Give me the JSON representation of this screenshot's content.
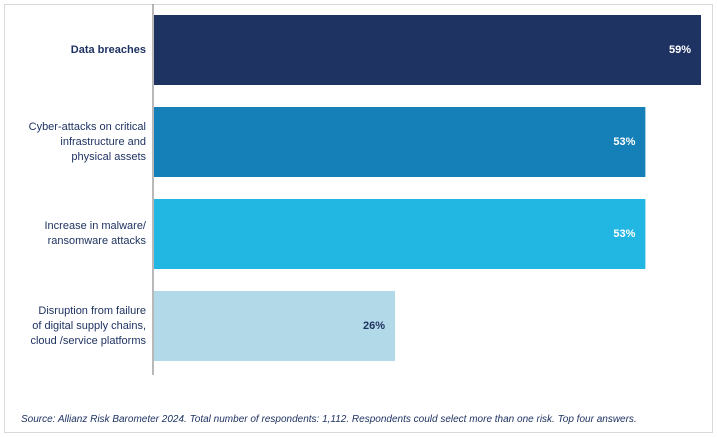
{
  "chart_data": {
    "type": "bar",
    "orientation": "horizontal",
    "categories": [
      "Data breaches",
      "Cyber-attacks on critical infrastructure and physical assets",
      "Increase in malware/ ransomware attacks",
      "Disruption from failure of digital supply chains, cloud /service platforms"
    ],
    "category_lines": [
      [
        "Data breaches"
      ],
      [
        "Cyber-attacks on critical",
        "infrastructure and",
        "physical assets"
      ],
      [
        "Increase in malware/",
        "ransomware attacks"
      ],
      [
        "Disruption from failure",
        "of digital supply chains,",
        "cloud /service platforms"
      ]
    ],
    "values": [
      59,
      53,
      53,
      26
    ],
    "value_labels": [
      "59%",
      "53%",
      "53%",
      "26%"
    ],
    "colors": [
      "#1f3362",
      "#1580b8",
      "#22b6e2",
      "#b2d9e7"
    ],
    "xlim": [
      0,
      59
    ],
    "title": "",
    "xlabel": "",
    "ylabel": "",
    "grid": false,
    "legend": "none"
  },
  "footer": {
    "source": "Source: Allianz Risk Barometer 2024. Total number of respondents: 1,112. Respondents could select more than one risk. Top four answers."
  }
}
